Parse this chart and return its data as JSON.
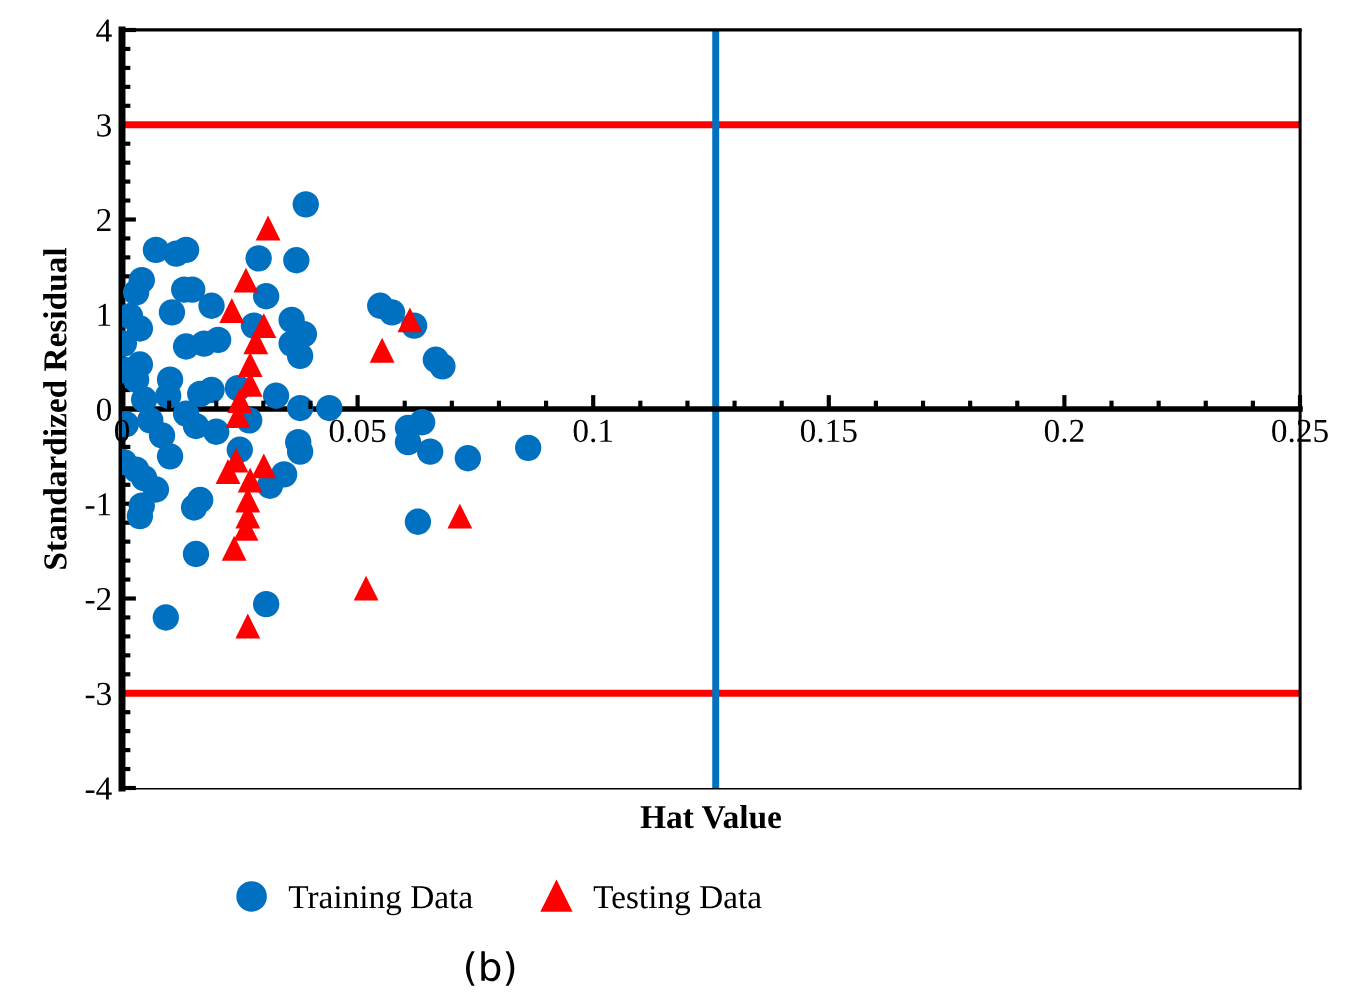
{
  "chart_data": {
    "type": "scatter",
    "xlabel": "Hat Value",
    "ylabel": "Standardized Residual",
    "xlim": [
      0,
      0.25
    ],
    "xticks": [
      0,
      0.05,
      0.1,
      0.15,
      0.2,
      0.25
    ],
    "ylim": [
      -4,
      4
    ],
    "yticks": [
      -4,
      -3,
      -2,
      -1,
      0,
      1,
      2,
      3,
      4
    ],
    "grid": false,
    "legend": "bottom",
    "marker": "circle",
    "series": [
      {
        "name": "Training Data",
        "color": "#0070c0",
        "x": [
          0.039,
          0.0072,
          0.0115,
          0.0136,
          0.0042,
          0.003,
          0.0017,
          0.0004,
          0.0038,
          0.0106,
          0.0132,
          0.0149,
          0.019,
          0.029,
          0.0306,
          0.037,
          0.036,
          0.028,
          0.036,
          0.0386,
          0.0378,
          0.0136,
          0.0174,
          0.0204,
          0.0008,
          0.0038,
          0.003,
          0.0102,
          0.0098,
          0.0047,
          0.0166,
          0.019,
          0.0246,
          0.0327,
          0.0378,
          0.044,
          0.0666,
          0.068,
          0.062,
          0.0548,
          0.0573,
          0.0008,
          0.006,
          0.0136,
          0.0157,
          0.02,
          0.027,
          0.0085,
          0.0004,
          0.003,
          0.0047,
          0.0072,
          0.0042,
          0.0038,
          0.0166,
          0.0153,
          0.0157,
          0.0093,
          0.0306,
          0.0374,
          0.0378,
          0.0344,
          0.0314,
          0.025,
          0.0607,
          0.0607,
          0.0637,
          0.0654,
          0.0734,
          0.0862,
          0.0628,
          0.0102
        ],
        "values": [
          2.16,
          1.68,
          1.64,
          1.68,
          1.36,
          1.23,
          0.98,
          0.69,
          0.85,
          1.02,
          1.26,
          1.26,
          1.09,
          1.59,
          1.19,
          1.57,
          0.94,
          0.88,
          0.69,
          0.79,
          0.56,
          0.66,
          0.69,
          0.73,
          0.41,
          0.47,
          0.31,
          0.31,
          0.14,
          0.1,
          0.16,
          0.2,
          0.22,
          0.14,
          0.01,
          0.01,
          0.52,
          0.45,
          0.88,
          1.09,
          1.02,
          -0.16,
          -0.12,
          -0.05,
          -0.18,
          -0.24,
          -0.12,
          -0.28,
          -0.56,
          -0.64,
          -0.73,
          -0.85,
          -1.02,
          -1.13,
          -0.96,
          -1.04,
          -1.53,
          -2.2,
          -2.06,
          -0.35,
          -0.45,
          -0.69,
          -0.81,
          -0.43,
          -0.2,
          -0.35,
          -0.14,
          -0.45,
          -0.52,
          -0.41,
          -1.19,
          -0.5
        ]
      },
      {
        "name": "Testing Data",
        "color": "#ff0000",
        "marker": "triangle",
        "x": [
          0.031,
          0.0263,
          0.0233,
          0.0301,
          0.0284,
          0.0272,
          0.0272,
          0.025,
          0.0246,
          0.0225,
          0.0242,
          0.0301,
          0.0272,
          0.0267,
          0.0267,
          0.0263,
          0.0238,
          0.0267,
          0.0552,
          0.0611,
          0.0717,
          0.0518
        ],
        "values": [
          1.91,
          1.36,
          1.04,
          0.88,
          0.71,
          0.47,
          0.26,
          0.09,
          -0.07,
          -0.66,
          -0.54,
          -0.6,
          -0.75,
          -0.96,
          -1.13,
          -1.26,
          -1.47,
          -2.29,
          0.62,
          0.94,
          -1.13,
          -1.89
        ]
      }
    ],
    "ref_lines": [
      {
        "axis": "y",
        "value": 3,
        "color": "#ff0000"
      },
      {
        "axis": "y",
        "value": -3,
        "color": "#ff0000"
      },
      {
        "axis": "x",
        "value": 0.126,
        "color": "#0070c0"
      }
    ],
    "annotations": [
      "(b)"
    ]
  }
}
